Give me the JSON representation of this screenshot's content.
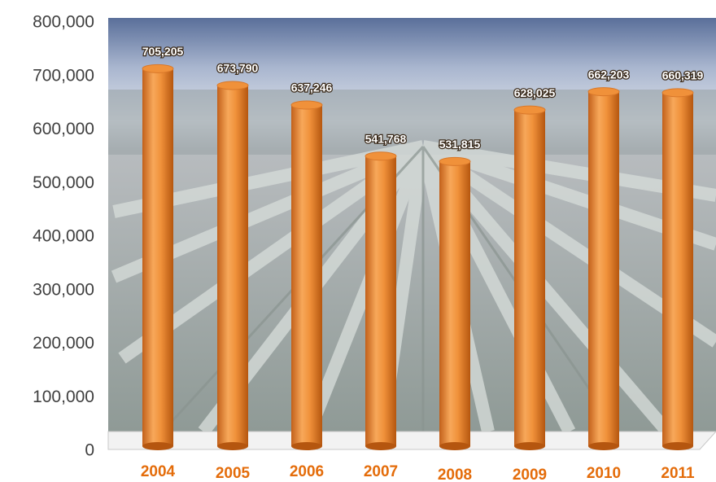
{
  "chart_data": {
    "type": "bar",
    "categories": [
      "2004",
      "2005",
      "2006",
      "2007",
      "2008",
      "2009",
      "2010",
      "2011"
    ],
    "values": [
      705205,
      673790,
      637246,
      541768,
      531815,
      628025,
      662203,
      660319
    ],
    "value_labels": [
      "705,205",
      "673,790",
      "637,246",
      "541,768",
      "531,815",
      "628,025",
      "662,203",
      "660,319"
    ],
    "color": "#f0913a",
    "ylim": [
      0,
      800000
    ],
    "yticks": [
      {
        "value": 0,
        "label": "0"
      },
      {
        "value": 100000,
        "label": "100,000"
      },
      {
        "value": 200000,
        "label": "200,000"
      },
      {
        "value": 300000,
        "label": "300,000"
      },
      {
        "value": 400000,
        "label": "400,000"
      },
      {
        "value": 500000,
        "label": "500,000"
      },
      {
        "value": 600000,
        "label": "600,000"
      },
      {
        "value": 700000,
        "label": "700,000"
      },
      {
        "value": 800000,
        "label": "800,000"
      }
    ]
  }
}
